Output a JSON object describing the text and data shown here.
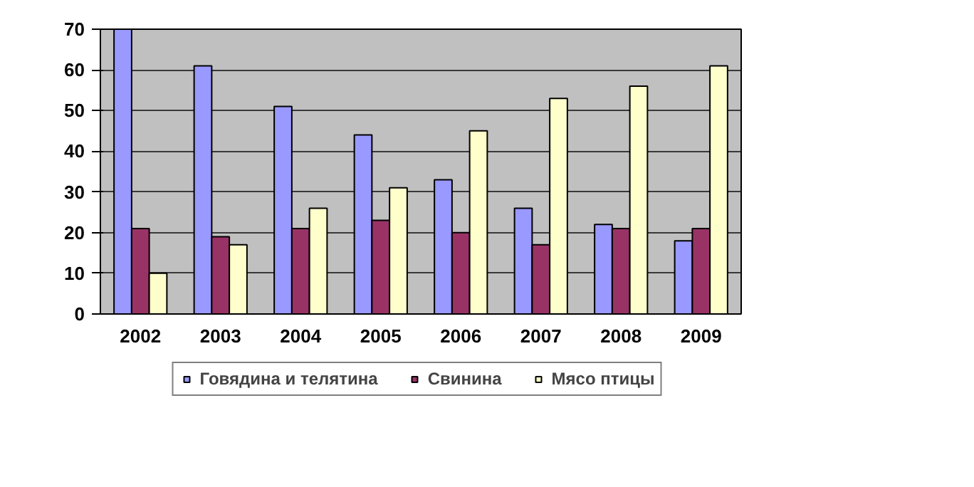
{
  "chart_data": {
    "type": "bar",
    "categories": [
      "2002",
      "2003",
      "2004",
      "2005",
      "2006",
      "2007",
      "2008",
      "2009"
    ],
    "series": [
      {
        "name": "Говядина и телятина",
        "color": "#9999ff",
        "values": [
          70,
          61,
          51,
          44,
          33,
          26,
          22,
          18
        ]
      },
      {
        "name": "Свинина",
        "color": "#993366",
        "values": [
          21,
          19,
          21,
          23,
          20,
          17,
          21,
          21
        ]
      },
      {
        "name": "Мясо птицы",
        "color": "#ffffcc",
        "values": [
          10,
          17,
          26,
          31,
          45,
          53,
          56,
          61
        ]
      }
    ],
    "ylim": [
      0,
      70
    ],
    "yticks": [
      0,
      10,
      20,
      30,
      40,
      50,
      60,
      70
    ],
    "grid": "y",
    "legend": "bottom"
  }
}
